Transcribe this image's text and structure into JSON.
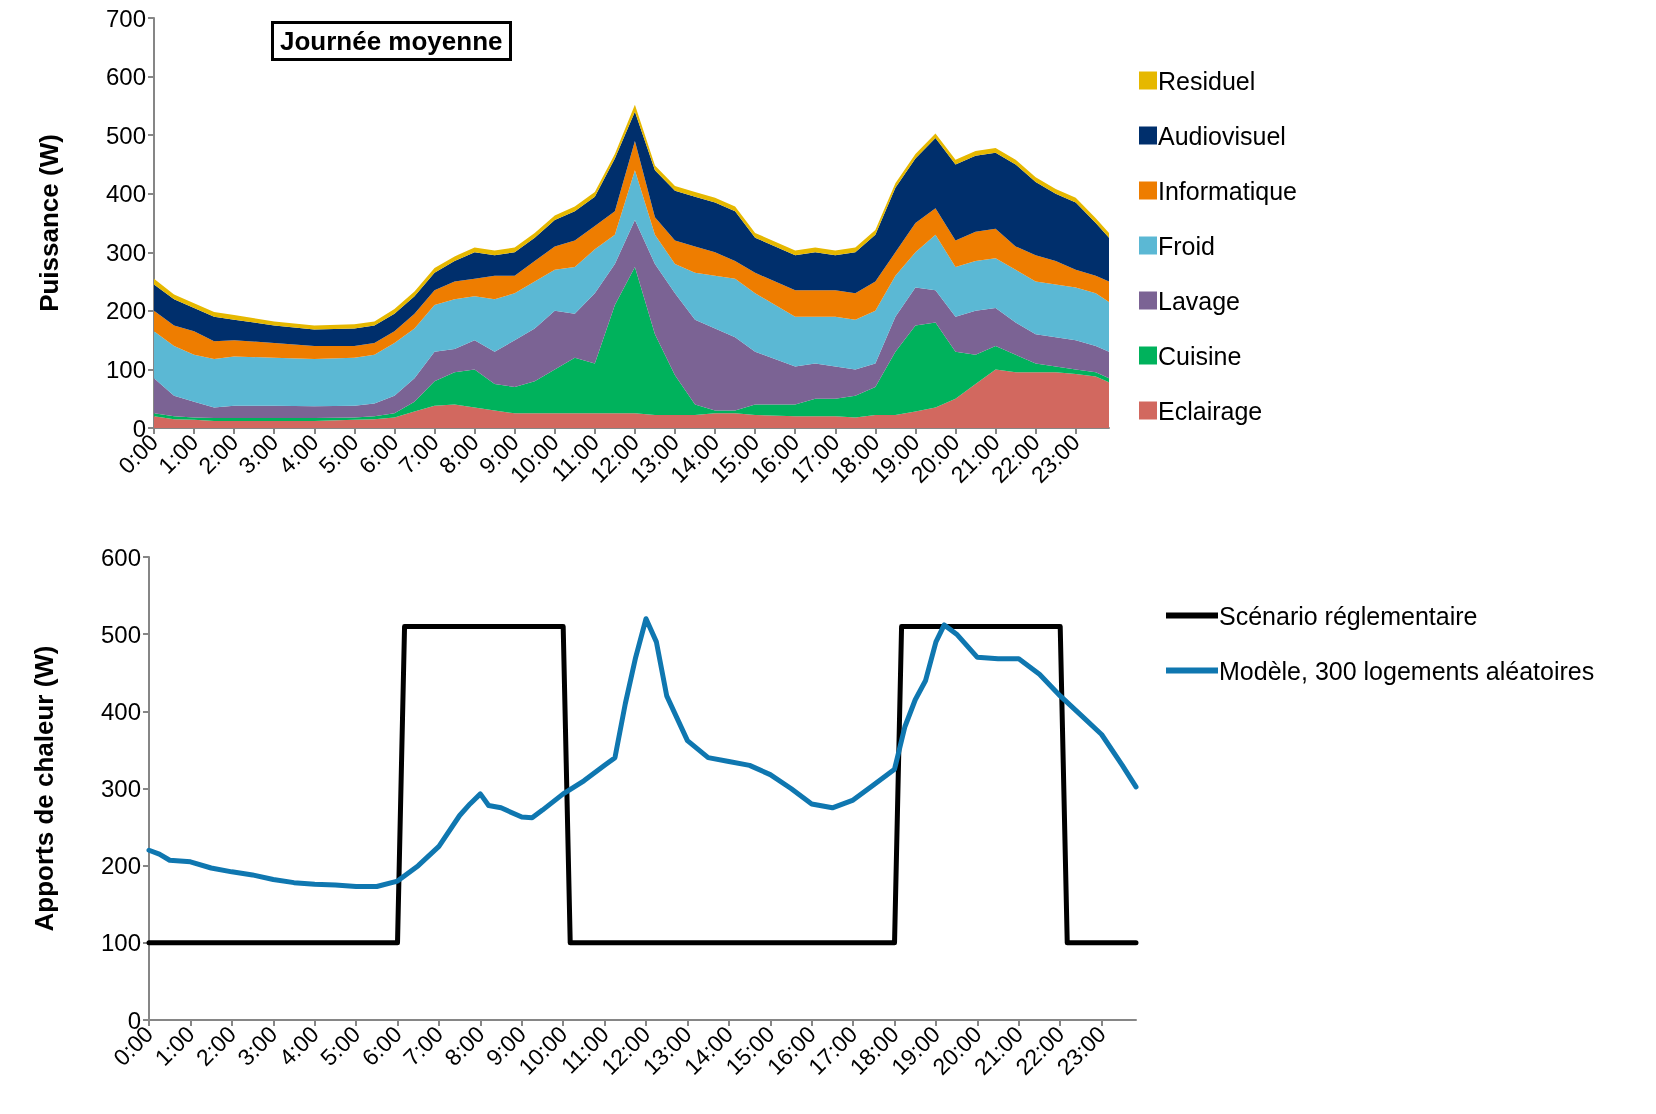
{
  "chart_data": [
    {
      "type": "area",
      "title": "Journée moyenne",
      "ylabel": "Puissance (W)",
      "stacked": true,
      "legend": "right",
      "marker": "none",
      "x": [
        0,
        0.5,
        1,
        1.5,
        2,
        3,
        4,
        5,
        5.5,
        6,
        6.5,
        7,
        7.5,
        8,
        8.5,
        9,
        9.5,
        10,
        10.5,
        11,
        11.5,
        12,
        12.5,
        13,
        13.5,
        14,
        14.5,
        15,
        16,
        16.5,
        17,
        17.5,
        18,
        18.5,
        19,
        19.5,
        20,
        20.5,
        21,
        21.5,
        22,
        22.5,
        23,
        23.5,
        23.83
      ],
      "xlim": [
        0,
        23.83
      ],
      "xticks": [
        {
          "value": 0,
          "label": "0:00"
        },
        {
          "value": 1,
          "label": "1:00"
        },
        {
          "value": 2,
          "label": "2:00"
        },
        {
          "value": 3,
          "label": "3:00"
        },
        {
          "value": 4,
          "label": "4:00"
        },
        {
          "value": 5,
          "label": "5:00"
        },
        {
          "value": 6,
          "label": "6:00"
        },
        {
          "value": 7,
          "label": "7:00"
        },
        {
          "value": 8,
          "label": "8:00"
        },
        {
          "value": 9,
          "label": "9:00"
        },
        {
          "value": 10,
          "label": "10:00"
        },
        {
          "value": 11,
          "label": "11:00"
        },
        {
          "value": 12,
          "label": "12:00"
        },
        {
          "value": 13,
          "label": "13:00"
        },
        {
          "value": 14,
          "label": "14:00"
        },
        {
          "value": 15,
          "label": "15:00"
        },
        {
          "value": 16,
          "label": "16:00"
        },
        {
          "value": 17,
          "label": "17:00"
        },
        {
          "value": 18,
          "label": "18:00"
        },
        {
          "value": 19,
          "label": "19:00"
        },
        {
          "value": 20,
          "label": "20:00"
        },
        {
          "value": 21,
          "label": "21:00"
        },
        {
          "value": 22,
          "label": "22:00"
        },
        {
          "value": 23,
          "label": "23:00"
        }
      ],
      "ylim": [
        0,
        700
      ],
      "yticks": [
        0,
        100,
        200,
        300,
        400,
        500,
        600,
        700
      ],
      "series": [
        {
          "name": "Eclairage",
          "color": "#d2685f",
          "values": [
            20,
            15,
            14,
            12,
            12,
            12,
            12,
            14,
            15,
            18,
            28,
            38,
            40,
            35,
            30,
            25,
            25,
            25,
            25,
            25,
            25,
            25,
            22,
            22,
            22,
            25,
            25,
            22,
            20,
            20,
            20,
            18,
            22,
            22,
            28,
            35,
            50,
            75,
            100,
            95,
            95,
            95,
            92,
            88,
            78
          ]
        },
        {
          "name": "Cuisine",
          "color": "#00b25c",
          "values": [
            5,
            5,
            4,
            5,
            5,
            5,
            5,
            4,
            5,
            7,
            17,
            42,
            55,
            65,
            45,
            45,
            55,
            75,
            95,
            85,
            185,
            250,
            138,
            68,
            18,
            5,
            5,
            18,
            20,
            30,
            30,
            37,
            48,
            108,
            147,
            145,
            80,
            50,
            40,
            30,
            15,
            10,
            8,
            7,
            7
          ]
        },
        {
          "name": "Lavage",
          "color": "#7b6394",
          "values": [
            60,
            35,
            27,
            18,
            21,
            21,
            20,
            20,
            22,
            30,
            40,
            50,
            40,
            50,
            55,
            80,
            90,
            100,
            75,
            120,
            70,
            80,
            120,
            140,
            145,
            140,
            125,
            90,
            65,
            60,
            55,
            45,
            40,
            60,
            65,
            55,
            60,
            75,
            65,
            55,
            50,
            50,
            50,
            45,
            45
          ]
        },
        {
          "name": "Froid",
          "color": "#5bb8d4",
          "values": [
            80,
            85,
            80,
            83,
            84,
            82,
            81,
            82,
            83,
            90,
            85,
            80,
            85,
            75,
            90,
            80,
            80,
            70,
            80,
            75,
            50,
            85,
            50,
            50,
            80,
            90,
            100,
            100,
            85,
            80,
            85,
            85,
            90,
            70,
            60,
            95,
            85,
            85,
            85,
            90,
            90,
            90,
            90,
            90,
            85
          ]
        },
        {
          "name": "Informatique",
          "color": "#ee7d00",
          "values": [
            35,
            35,
            40,
            30,
            28,
            25,
            22,
            20,
            20,
            20,
            25,
            25,
            30,
            30,
            40,
            30,
            35,
            40,
            45,
            40,
            40,
            50,
            30,
            40,
            45,
            40,
            30,
            35,
            45,
            45,
            45,
            45,
            50,
            40,
            50,
            45,
            45,
            50,
            50,
            40,
            45,
            40,
            30,
            30,
            35
          ]
        },
        {
          "name": "Audiovisuel",
          "color": "#002f6c",
          "values": [
            45,
            45,
            40,
            42,
            35,
            30,
            28,
            30,
            30,
            30,
            30,
            30,
            35,
            45,
            35,
            40,
            40,
            45,
            50,
            50,
            90,
            50,
            80,
            85,
            85,
            85,
            85,
            60,
            60,
            65,
            60,
            70,
            80,
            110,
            110,
            120,
            130,
            130,
            130,
            140,
            125,
            115,
            115,
            90,
            75
          ]
        },
        {
          "name": "Residuel",
          "color": "#e6b800",
          "values": [
            10,
            8,
            8,
            8,
            8,
            7,
            7,
            7,
            7,
            8,
            8,
            8,
            8,
            8,
            8,
            8,
            8,
            8,
            8,
            8,
            8,
            12,
            8,
            8,
            8,
            8,
            8,
            8,
            8,
            8,
            8,
            8,
            8,
            8,
            8,
            8,
            8,
            8,
            8,
            8,
            8,
            8,
            8,
            8,
            8
          ]
        }
      ]
    },
    {
      "type": "line",
      "ylabel": "Apports de chaleur (W)",
      "legend": "right",
      "marker": "none",
      "line_style": "solid",
      "xlim": [
        0,
        23.83
      ],
      "xticks": [
        {
          "value": 0,
          "label": "0:00"
        },
        {
          "value": 1,
          "label": "1:00"
        },
        {
          "value": 2,
          "label": "2:00"
        },
        {
          "value": 3,
          "label": "3:00"
        },
        {
          "value": 4,
          "label": "4:00"
        },
        {
          "value": 5,
          "label": "5:00"
        },
        {
          "value": 6,
          "label": "6:00"
        },
        {
          "value": 7,
          "label": "7:00"
        },
        {
          "value": 8,
          "label": "8:00"
        },
        {
          "value": 9,
          "label": "9:00"
        },
        {
          "value": 10,
          "label": "10:00"
        },
        {
          "value": 11,
          "label": "11:00"
        },
        {
          "value": 12,
          "label": "12:00"
        },
        {
          "value": 13,
          "label": "13:00"
        },
        {
          "value": 14,
          "label": "14:00"
        },
        {
          "value": 15,
          "label": "15:00"
        },
        {
          "value": 16,
          "label": "16:00"
        },
        {
          "value": 17,
          "label": "17:00"
        },
        {
          "value": 18,
          "label": "18:00"
        },
        {
          "value": 19,
          "label": "19:00"
        },
        {
          "value": 20,
          "label": "20:00"
        },
        {
          "value": 21,
          "label": "21:00"
        },
        {
          "value": 22,
          "label": "22:00"
        },
        {
          "value": 23,
          "label": "23:00"
        }
      ],
      "ylim": [
        0,
        600
      ],
      "yticks": [
        0,
        100,
        200,
        300,
        400,
        500,
        600
      ],
      "series": [
        {
          "name": "Scénario réglementaire",
          "color": "#000000",
          "x": [
            0,
            6,
            6.17,
            10,
            10.17,
            18,
            18.17,
            22,
            22.17,
            23.83
          ],
          "values": [
            100,
            100,
            510,
            510,
            100,
            100,
            510,
            510,
            100,
            100
          ]
        },
        {
          "name": "Modèle, 300 logements aléatoires",
          "color": "#0f77b0",
          "x": [
            0,
            0.25,
            0.5,
            1,
            1.5,
            2,
            2.5,
            3,
            3.5,
            4,
            4.5,
            5,
            5.5,
            6,
            6.5,
            7,
            7.5,
            7.75,
            8,
            8.2,
            8.5,
            9,
            9.25,
            9.5,
            10,
            10.5,
            11,
            11.25,
            11.5,
            11.75,
            12,
            12.25,
            12.5,
            13,
            13.5,
            14,
            14.5,
            15,
            15.5,
            16,
            16.5,
            17,
            17.5,
            18,
            18.25,
            18.5,
            18.75,
            19,
            19.2,
            19.5,
            20,
            20.5,
            21,
            21.5,
            22,
            22.5,
            23,
            23.5,
            23.83
          ],
          "values": [
            220,
            215,
            207,
            205,
            197,
            192,
            188,
            182,
            178,
            176,
            175,
            173,
            173,
            180,
            200,
            225,
            265,
            280,
            293,
            278,
            275,
            263,
            262,
            272,
            293,
            310,
            330,
            340,
            410,
            470,
            520,
            490,
            420,
            362,
            340,
            335,
            330,
            318,
            300,
            280,
            275,
            285,
            305,
            325,
            380,
            415,
            440,
            490,
            512,
            500,
            470,
            468,
            468,
            448,
            420,
            395,
            370,
            330,
            302
          ]
        }
      ]
    }
  ]
}
